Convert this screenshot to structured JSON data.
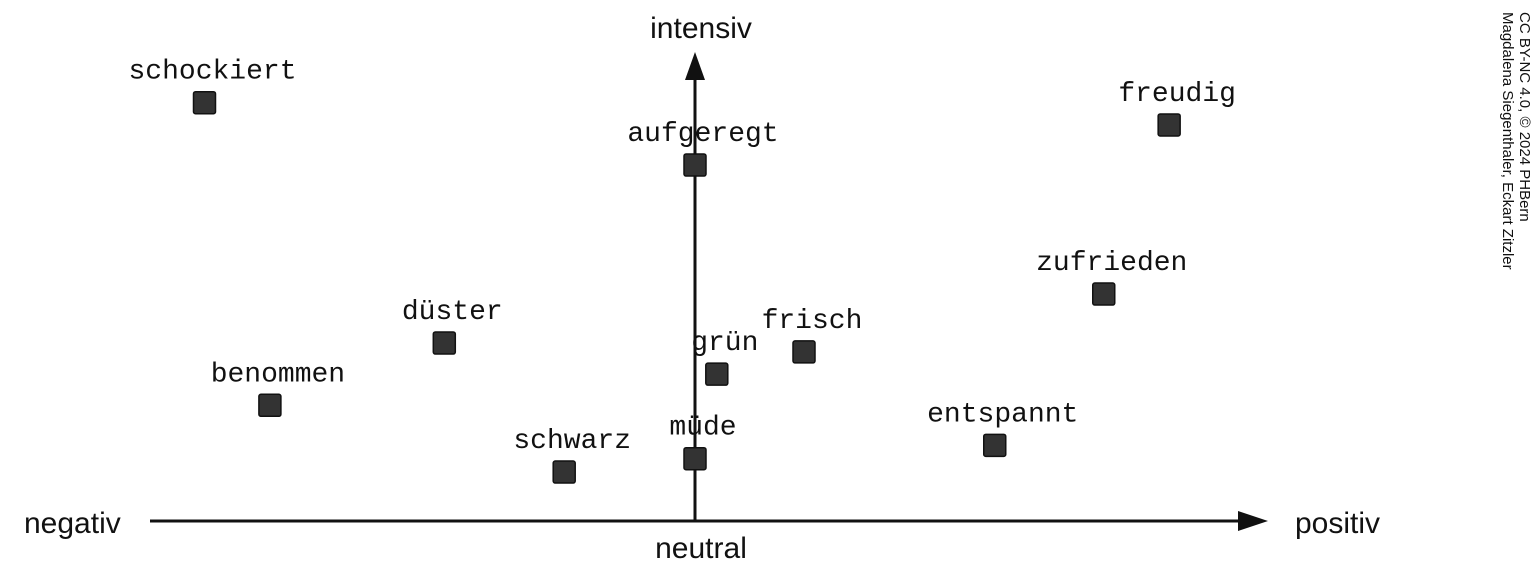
{
  "axes": {
    "y_top_label": "intensiv",
    "x_left_label": "negativ",
    "x_right_label": "positiv",
    "x_center_label": "neutral"
  },
  "credit": {
    "line1": "CC BY-NC 4.0, © 2024 PHBern",
    "line2": "Magdalena Siegenthaler, Eckart Zitzler"
  },
  "chart_data": {
    "type": "scatter",
    "xlabel": "",
    "ylabel": "",
    "xlim": [
      -1,
      1
    ],
    "ylim": [
      0,
      1
    ],
    "points": [
      {
        "label": "schockiert",
        "x": -0.9,
        "y": 0.94
      },
      {
        "label": "aufgeregt",
        "x": 0.0,
        "y": 0.8
      },
      {
        "label": "freudig",
        "x": 0.87,
        "y": 0.89
      },
      {
        "label": "zufrieden",
        "x": 0.75,
        "y": 0.51
      },
      {
        "label": "düster",
        "x": -0.46,
        "y": 0.4
      },
      {
        "label": "frisch",
        "x": 0.2,
        "y": 0.38
      },
      {
        "label": "grün",
        "x": 0.04,
        "y": 0.33
      },
      {
        "label": "benommen",
        "x": -0.78,
        "y": 0.26
      },
      {
        "label": "entspannt",
        "x": 0.55,
        "y": 0.17
      },
      {
        "label": "müde",
        "x": 0.0,
        "y": 0.14
      },
      {
        "label": "schwarz",
        "x": -0.24,
        "y": 0.11
      }
    ]
  },
  "colors": {
    "marker": "#333333",
    "axis": "#111111"
  }
}
